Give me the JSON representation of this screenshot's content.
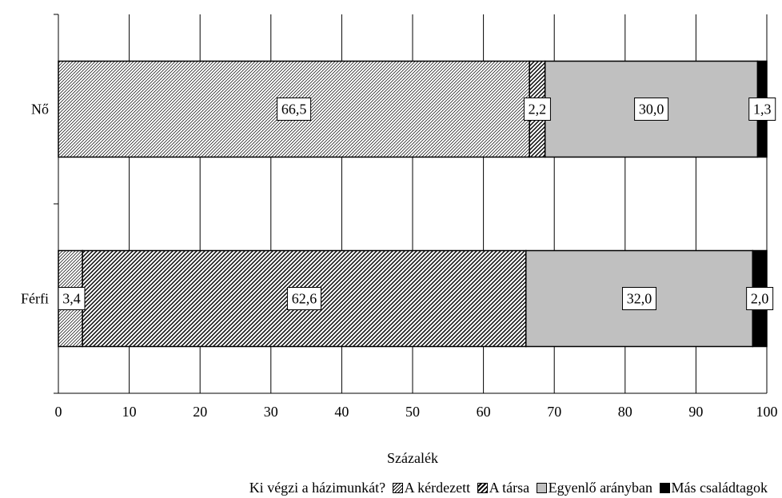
{
  "colors": {
    "self": "#d9d9d9",
    "partner": "#ffffff",
    "equal": "#c0c0c0",
    "other": "#000000"
  },
  "chart_data": {
    "type": "bar",
    "orientation": "horizontal",
    "stacked": true,
    "categories": [
      "Nő",
      "Férfi"
    ],
    "series": [
      {
        "name": "A kérdezett",
        "values": [
          66.5,
          3.4
        ],
        "labels": [
          "66,5",
          "3,4"
        ],
        "pattern": "hatch-light"
      },
      {
        "name": "A társa",
        "values": [
          2.2,
          62.6
        ],
        "labels": [
          "2,2",
          "62,6"
        ],
        "pattern": "hatch-dense"
      },
      {
        "name": "Egyenlő arányban",
        "values": [
          30.0,
          32.0
        ],
        "labels": [
          "30,0",
          "32,0"
        ],
        "pattern": "solid-gray"
      },
      {
        "name": "Más családtagok",
        "values": [
          1.3,
          2.0
        ],
        "labels": [
          "1,3",
          "2,0"
        ],
        "pattern": "solid-black"
      }
    ],
    "xlabel": "Százalék",
    "ylabel": "",
    "xlim": [
      0,
      100
    ],
    "xticks": [
      "0",
      "10",
      "20",
      "30",
      "40",
      "50",
      "60",
      "70",
      "80",
      "90",
      "100"
    ],
    "grid": true,
    "legend": {
      "title": "Ki végzi a házimunkát?",
      "position": "bottom"
    }
  }
}
